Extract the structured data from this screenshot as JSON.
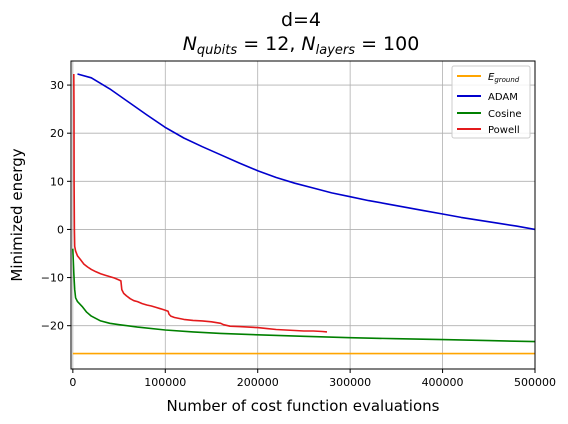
{
  "chart_data": {
    "type": "line",
    "title": "d=4",
    "subtitle": {
      "n1": "N",
      "n1_sub": "qubits",
      "eq1": " = 12, ",
      "n2": "N",
      "n2_sub": "layers",
      "eq2": " = 100"
    },
    "xlabel": "Number of cost function evaluations",
    "ylabel": "Minimized energy",
    "xlim": [
      -2000,
      500000
    ],
    "ylim": [
      -29,
      35
    ],
    "xticks": [
      0,
      100000,
      200000,
      300000,
      400000,
      500000
    ],
    "xtick_labels": [
      "0",
      "100000",
      "200000",
      "300000",
      "400000",
      "500000"
    ],
    "yticks": [
      -20,
      -10,
      0,
      10,
      20,
      30
    ],
    "ytick_labels": [
      "−20",
      "−10",
      "0",
      "10",
      "20",
      "30"
    ],
    "grid": true,
    "legend_position": "top-right",
    "series": [
      {
        "name": "E_ground",
        "legend_base": "E",
        "legend_sub": "ground",
        "color": "#ffa500",
        "x": [
          0,
          500000
        ],
        "y": [
          -25.8,
          -25.8
        ]
      },
      {
        "name": "ADAM",
        "color": "#0000cd",
        "x": [
          5000,
          20000,
          40000,
          60000,
          80000,
          100000,
          120000,
          140000,
          160000,
          180000,
          200000,
          220000,
          240000,
          260000,
          280000,
          300000,
          320000,
          340000,
          360000,
          380000,
          400000,
          420000,
          440000,
          460000,
          480000,
          500000
        ],
        "y": [
          32.3,
          31.5,
          29.2,
          26.5,
          23.8,
          21.2,
          19.0,
          17.2,
          15.5,
          13.8,
          12.2,
          10.8,
          9.6,
          8.6,
          7.6,
          6.8,
          6.0,
          5.3,
          4.6,
          3.9,
          3.2,
          2.5,
          1.9,
          1.3,
          0.7,
          0.0
        ]
      },
      {
        "name": "Cosine",
        "color": "#008000",
        "x": [
          0,
          1000,
          2000,
          3000,
          5000,
          10000,
          15000,
          20000,
          30000,
          40000,
          50000,
          70000,
          100000,
          130000,
          160000,
          200000,
          250000,
          300000,
          350000,
          400000,
          450000,
          500000
        ],
        "y": [
          -4.0,
          -9.0,
          -12.5,
          -14.2,
          -15.0,
          -16.0,
          -17.2,
          -18.0,
          -19.0,
          -19.5,
          -19.8,
          -20.3,
          -20.9,
          -21.3,
          -21.6,
          -21.9,
          -22.2,
          -22.5,
          -22.7,
          -22.9,
          -23.1,
          -23.3
        ]
      },
      {
        "name": "Powell",
        "color": "#e31a1c",
        "x": [
          1000,
          1200,
          1400,
          1700,
          2000,
          3000,
          5000,
          8000,
          12000,
          16000,
          20000,
          25000,
          30000,
          35000,
          40000,
          45000,
          50000,
          52000,
          53000,
          55000,
          58000,
          62000,
          66000,
          70000,
          75000,
          80000,
          85000,
          90000,
          95000,
          100000,
          103000,
          104000,
          106000,
          110000,
          120000,
          130000,
          140000,
          150000,
          160000,
          163000,
          170000,
          180000,
          190000,
          200000,
          210000,
          220000,
          230000,
          240000,
          250000,
          260000,
          270000,
          275000
        ],
        "y": [
          32.3,
          25.0,
          10.0,
          0.0,
          -3.5,
          -4.5,
          -5.5,
          -6.2,
          -7.2,
          -7.8,
          -8.3,
          -8.8,
          -9.2,
          -9.5,
          -9.8,
          -10.1,
          -10.5,
          -10.7,
          -12.5,
          -13.3,
          -13.8,
          -14.4,
          -14.8,
          -15.0,
          -15.4,
          -15.7,
          -15.9,
          -16.2,
          -16.5,
          -16.8,
          -17.0,
          -17.6,
          -18.0,
          -18.3,
          -18.7,
          -18.9,
          -19.0,
          -19.2,
          -19.5,
          -19.8,
          -20.1,
          -20.2,
          -20.3,
          -20.4,
          -20.6,
          -20.8,
          -20.9,
          -21.0,
          -21.1,
          -21.1,
          -21.2,
          -21.3
        ]
      }
    ]
  }
}
